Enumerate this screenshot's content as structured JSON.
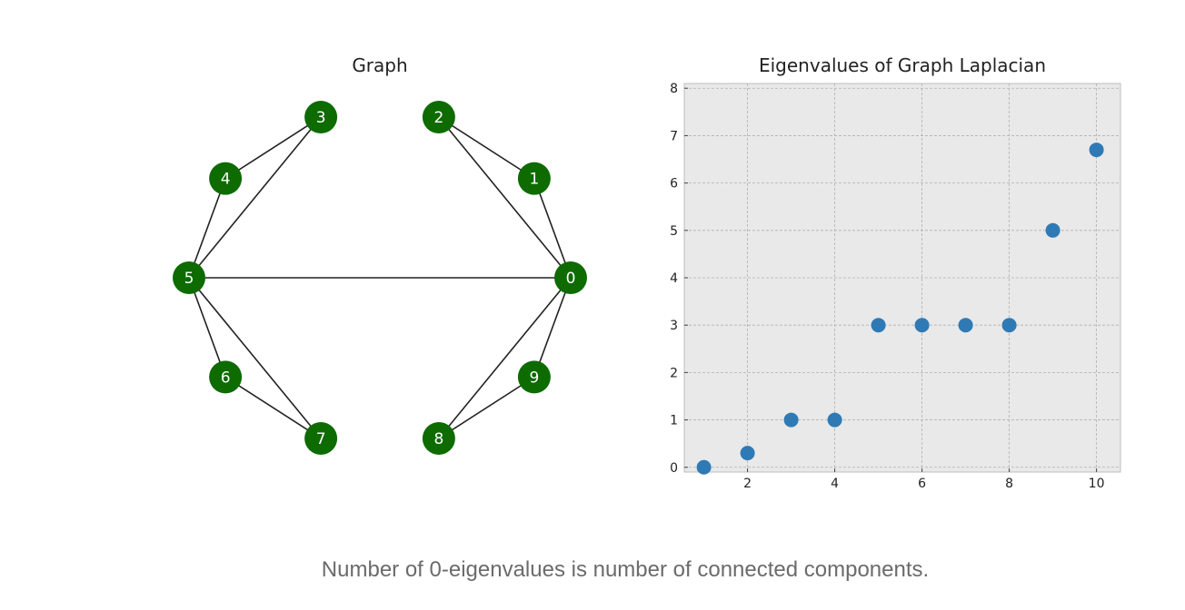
{
  "caption": "Number of 0-eigenvalues is number of connected components.",
  "graph": {
    "title": "Graph",
    "node_color": "#0d6b00",
    "edge_color": "#222222",
    "nodes": [
      "0",
      "1",
      "2",
      "3",
      "4",
      "5",
      "6",
      "7",
      "8",
      "9"
    ],
    "edges": [
      [
        "0",
        "1"
      ],
      [
        "0",
        "2"
      ],
      [
        "1",
        "2"
      ],
      [
        "0",
        "5"
      ],
      [
        "0",
        "8"
      ],
      [
        "0",
        "9"
      ],
      [
        "8",
        "9"
      ],
      [
        "5",
        "3"
      ],
      [
        "5",
        "4"
      ],
      [
        "3",
        "4"
      ],
      [
        "5",
        "6"
      ],
      [
        "5",
        "7"
      ],
      [
        "6",
        "7"
      ]
    ]
  },
  "chart_data": {
    "type": "scatter",
    "title": "Eigenvalues of Graph Laplacian",
    "xlabel": "",
    "ylabel": "",
    "xlim": [
      0.55,
      10.55
    ],
    "ylim": [
      -0.1,
      8.1
    ],
    "xticks": [
      2,
      4,
      6,
      8,
      10
    ],
    "yticks": [
      0,
      1,
      2,
      3,
      4,
      5,
      6,
      7,
      8
    ],
    "grid": true,
    "marker_color": "#2f7ab5",
    "x": [
      1,
      2,
      3,
      4,
      5,
      6,
      7,
      8,
      9,
      10
    ],
    "y": [
      0,
      0.3,
      1,
      1,
      3,
      3,
      3,
      3,
      5,
      6.7
    ]
  }
}
